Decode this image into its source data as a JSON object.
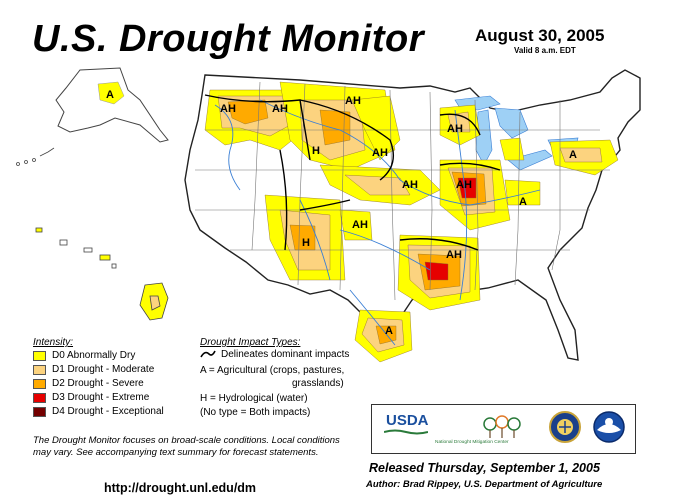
{
  "header": {
    "title": "U.S. Drought Monitor",
    "date": "August 30, 2005",
    "valid": "Valid 8 a.m. EDT"
  },
  "colors": {
    "D0": "#ffff00",
    "D1": "#fcd37f",
    "D2": "#ffaa00",
    "D3": "#e60000",
    "D4": "#730000",
    "water": "#9ed0f5",
    "land": "#ffffff",
    "rivers": "#3a7fd5"
  },
  "legend": {
    "intensity_title": "Intensity:",
    "levels": [
      {
        "code": "D0",
        "label": "D0 Abnormally Dry"
      },
      {
        "code": "D1",
        "label": "D1 Drought - Moderate"
      },
      {
        "code": "D2",
        "label": "D2 Drought - Severe"
      },
      {
        "code": "D3",
        "label": "D3 Drought - Extreme"
      },
      {
        "code": "D4",
        "label": "D4 Drought - Exceptional"
      }
    ],
    "impact_title": "Drought Impact Types:",
    "impact_lines": [
      "Delineates dominant impacts",
      "A = Agricultural (crops, pastures,",
      "grasslands)",
      "H = Hydrological (water)",
      "(No type = Both impacts)"
    ]
  },
  "map_labels": [
    "A",
    "AH",
    "AH",
    "AH",
    "H",
    "AH",
    "AH",
    "AH",
    "AH",
    "H",
    "AH",
    "AH",
    "A",
    "A",
    "A"
  ],
  "note": "The Drought Monitor focuses on broad-scale conditions. Local conditions may vary.  See accompanying text summary for forecast statements.",
  "footer": {
    "url": "http://drought.unl.edu/dm",
    "released": "Released Thursday, September 1, 2005",
    "author": "Author:  Brad Rippey, U.S. Department of Agriculture"
  },
  "logos": {
    "usda": "USDA",
    "ndmc": "National Drought Mitigation Center",
    "icons": [
      "usda-logo-icon",
      "ndmc-logo-icon",
      "commerce-seal-icon",
      "noaa-logo-icon"
    ]
  }
}
